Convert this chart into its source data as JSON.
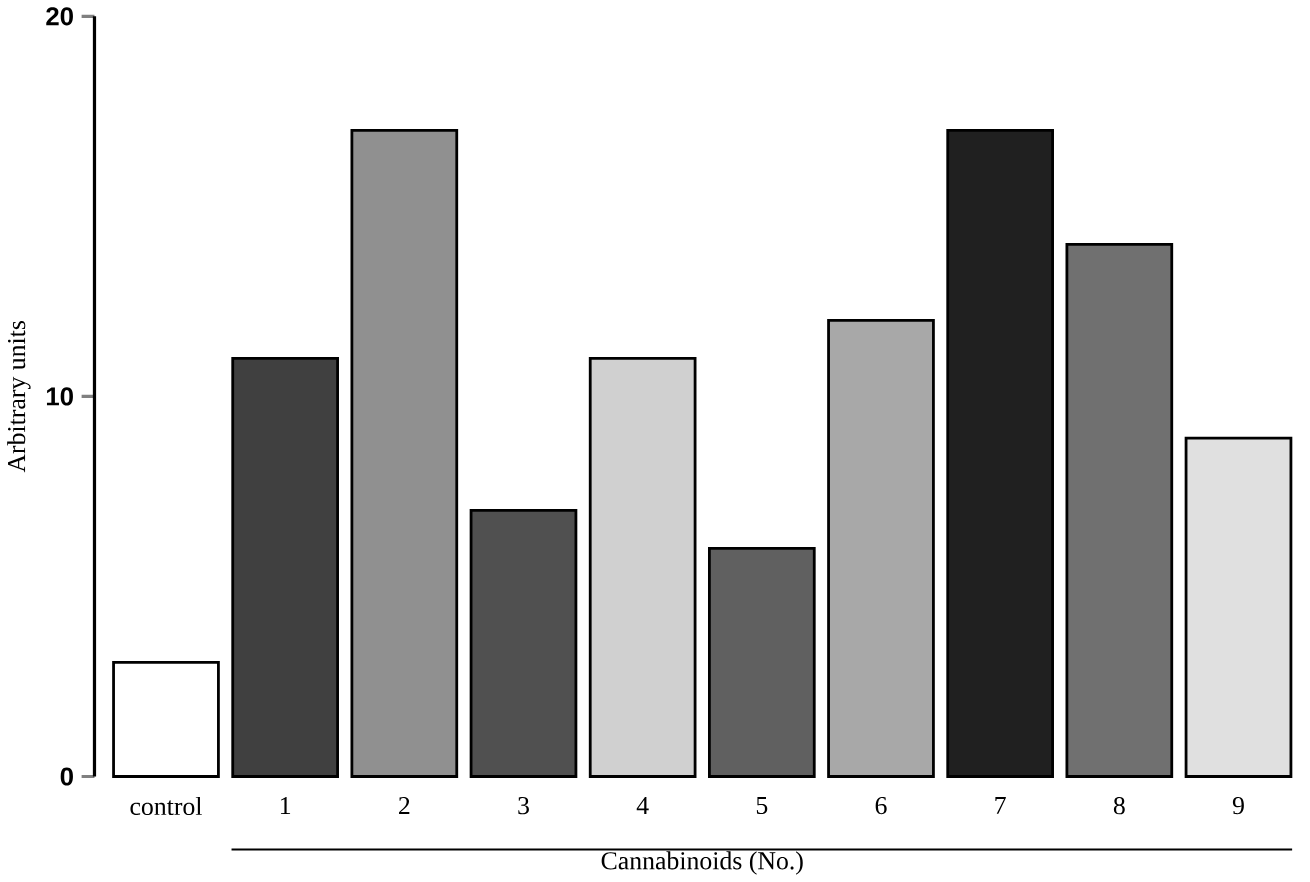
{
  "chart_data": {
    "type": "bar",
    "xlabel": "Cannabinoids (No.)",
    "ylabel": "Arbitrary units",
    "categories": [
      "control",
      "1",
      "2",
      "3",
      "4",
      "5",
      "6",
      "7",
      "8",
      "9"
    ],
    "values": [
      3,
      11,
      17,
      7,
      11,
      6,
      12,
      17,
      14,
      8.9
    ],
    "colors": [
      "#ffffff",
      "#404040",
      "#909090",
      "#505050",
      "#d0d0d0",
      "#606060",
      "#a8a8a8",
      "#202020",
      "#707070",
      "#e0e0e0"
    ],
    "ylim": [
      0,
      20
    ],
    "yticks": [
      0,
      10,
      20
    ]
  }
}
